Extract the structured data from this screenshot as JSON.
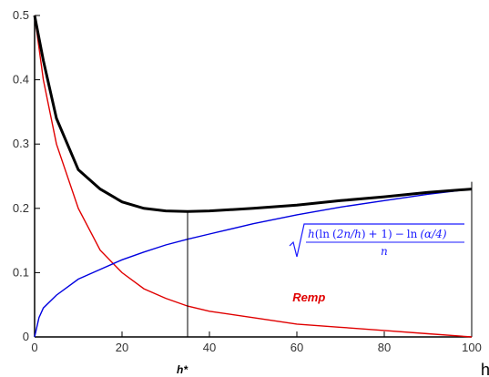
{
  "chart_data": {
    "type": "line",
    "title": "",
    "xlabel": "h",
    "ylabel": "",
    "xlim": [
      0,
      100
    ],
    "ylim": [
      0,
      0.5
    ],
    "x_ticks": [
      0,
      20,
      40,
      60,
      80,
      100
    ],
    "y_ticks": [
      0,
      0.1,
      0.2,
      0.3,
      0.4,
      0.5
    ],
    "y_tick_labels": [
      "0",
      "0.1",
      "0.2",
      "0.3",
      "0.4",
      "0.5"
    ],
    "grid": false,
    "series": [
      {
        "name": "Remp",
        "color": "#e00000",
        "x": [
          0,
          2,
          5,
          10,
          15,
          20,
          25,
          30,
          35,
          40,
          50,
          60,
          70,
          80,
          90,
          100
        ],
        "y": [
          0.5,
          0.4,
          0.3,
          0.2,
          0.135,
          0.1,
          0.075,
          0.06,
          0.048,
          0.04,
          0.03,
          0.02,
          0.015,
          0.01,
          0.005,
          0.0
        ]
      },
      {
        "name": "",
        "color": "#0000e0",
        "x": [
          0,
          1,
          2,
          5,
          10,
          15,
          20,
          25,
          30,
          35,
          40,
          50,
          60,
          70,
          80,
          90,
          100
        ],
        "y": [
          0.0,
          0.03,
          0.045,
          0.065,
          0.09,
          0.105,
          0.12,
          0.132,
          0.143,
          0.152,
          0.16,
          0.176,
          0.19,
          0.202,
          0.212,
          0.222,
          0.23
        ]
      },
      {
        "name": "",
        "color": "#000000",
        "x": [
          0,
          2,
          5,
          10,
          15,
          20,
          25,
          30,
          35,
          40,
          50,
          60,
          70,
          80,
          90,
          100
        ],
        "y": [
          0.5,
          0.43,
          0.34,
          0.26,
          0.23,
          0.21,
          0.2,
          0.196,
          0.195,
          0.196,
          0.2,
          0.205,
          0.212,
          0.218,
          0.225,
          0.23
        ]
      }
    ],
    "annotations": {
      "h_star_label": "h*",
      "h_star_x": 35,
      "h_star_y": 0.195,
      "remp_label": "Remp",
      "formula": {
        "h": "h",
        "ln1": "ln",
        "open1": "(",
        "two_n": "2n",
        "slash_h": "/h",
        "close1": ")",
        "plus_one": "+ 1)",
        "minus": "−",
        "ln2": "ln",
        "alpha_frac": "(α/4)",
        "denominator": "n"
      }
    }
  }
}
